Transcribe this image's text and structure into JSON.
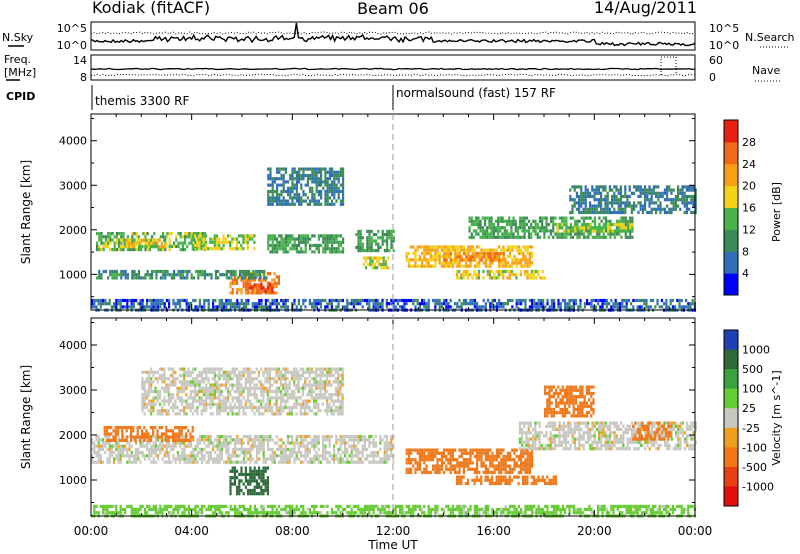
{
  "header": {
    "station": "Kodiak (fitACF)",
    "beam": "Beam 06",
    "date": "14/Aug/2011"
  },
  "noise_panel": {
    "left_label": "N.Sky",
    "right_label": "N.Search",
    "ticks": [
      "10^5",
      "10^0"
    ]
  },
  "freq_panel": {
    "left_label_line1": "Freq.",
    "left_label_line2": "[MHz]",
    "right_label": "Nave",
    "left_ticks": [
      "14",
      "8"
    ],
    "right_ticks": [
      "60",
      "0"
    ]
  },
  "cpid_panel": {
    "label": "CPID",
    "modes": [
      {
        "name": "themis 3300 RF",
        "start_hour": 0
      },
      {
        "name": "normalsound (fast) 157 RF",
        "start_hour": 12
      }
    ]
  },
  "colors": {
    "power_scale": [
      "#0000ff",
      "#2f6fb7",
      "#3c8a57",
      "#47b24a",
      "#f2d21a",
      "#f6a01a",
      "#f06a1a",
      "#e82012"
    ],
    "velocity_scale": [
      "#1f3fb5",
      "#2d6a3a",
      "#3aa240",
      "#66cc33",
      "#c8c8c0",
      "#f0a020",
      "#f07818",
      "#e84010",
      "#e01010"
    ]
  },
  "chart_data": [
    {
      "type": "heatmap",
      "quantity": "Power",
      "title": "",
      "xlabel": "",
      "ylabel": "Slant Range [km]",
      "x_ticks": [
        "00:00",
        "04:00",
        "08:00",
        "12:00",
        "16:00",
        "20:00",
        "00:00"
      ],
      "y_ticks": [
        "1000",
        "2000",
        "3000",
        "4000"
      ],
      "xlim_hours": [
        0,
        24
      ],
      "ylim_km": [
        200,
        4600
      ],
      "colorbar": {
        "label": "Power [dB]",
        "ticks": [
          "4",
          "8",
          "12",
          "16",
          "20",
          "24",
          "28"
        ],
        "range": [
          0,
          32
        ]
      },
      "regions": [
        {
          "t": [
            0.2,
            4.5
          ],
          "r": [
            1550,
            1950
          ],
          "v": 14
        },
        {
          "t": [
            1.2,
            3.0
          ],
          "r": [
            1650,
            1800
          ],
          "v": 18
        },
        {
          "t": [
            4.0,
            6.5
          ],
          "r": [
            1600,
            1900
          ],
          "v": 16
        },
        {
          "t": [
            5.5,
            7.5
          ],
          "r": [
            550,
            1050
          ],
          "v": 24
        },
        {
          "t": [
            6.2,
            7.2
          ],
          "r": [
            600,
            800
          ],
          "v": 28
        },
        {
          "t": [
            7.0,
            10.0
          ],
          "r": [
            1500,
            1900
          ],
          "v": 12
        },
        {
          "t": [
            10.5,
            12.0
          ],
          "r": [
            1550,
            2000
          ],
          "v": 12
        },
        {
          "t": [
            7.0,
            10.0
          ],
          "r": [
            2600,
            3400
          ],
          "v": 8
        },
        {
          "t": [
            0.2,
            7.0
          ],
          "r": [
            900,
            1100
          ],
          "v": 10
        },
        {
          "t": [
            10.8,
            11.8
          ],
          "r": [
            1150,
            1400
          ],
          "v": 18
        },
        {
          "t": [
            12.5,
            17.5
          ],
          "r": [
            1150,
            1650
          ],
          "v": 20
        },
        {
          "t": [
            14.0,
            16.5
          ],
          "r": [
            1300,
            1500
          ],
          "v": 24
        },
        {
          "t": [
            14.5,
            18.0
          ],
          "r": [
            950,
            1100
          ],
          "v": 18
        },
        {
          "t": [
            15.0,
            21.5
          ],
          "r": [
            1800,
            2300
          ],
          "v": 12
        },
        {
          "t": [
            18.5,
            21.5
          ],
          "r": [
            1950,
            2150
          ],
          "v": 16
        },
        {
          "t": [
            19.0,
            24.0
          ],
          "r": [
            2400,
            3000
          ],
          "v": 8
        },
        {
          "t": [
            0.0,
            24.0
          ],
          "r": [
            200,
            450
          ],
          "v": 6
        }
      ]
    },
    {
      "type": "heatmap",
      "quantity": "Velocity",
      "title": "",
      "xlabel": "Time UT",
      "ylabel": "Slant Range [km]",
      "x_ticks": [
        "00:00",
        "04:00",
        "08:00",
        "12:00",
        "16:00",
        "20:00",
        "00:00"
      ],
      "y_ticks": [
        "1000",
        "2000",
        "3000",
        "4000"
      ],
      "xlim_hours": [
        0,
        24
      ],
      "ylim_km": [
        200,
        4600
      ],
      "colorbar": {
        "label": "Velocity [m s^-1]",
        "ticks": [
          "1000",
          "500",
          "100",
          "25",
          "-25",
          "-100",
          "-500",
          "-1000"
        ]
      },
      "regions": [
        {
          "t": [
            0.0,
            12.0
          ],
          "r": [
            1400,
            2000
          ],
          "v": 0
        },
        {
          "t": [
            2.0,
            10.0
          ],
          "r": [
            2500,
            3500
          ],
          "v": 0
        },
        {
          "t": [
            5.5,
            7.0
          ],
          "r": [
            700,
            1300
          ],
          "v": 150
        },
        {
          "t": [
            0.5,
            4.0
          ],
          "r": [
            1900,
            2200
          ],
          "v": -150
        },
        {
          "t": [
            12.5,
            17.5
          ],
          "r": [
            1150,
            1700
          ],
          "v": -300
        },
        {
          "t": [
            14.5,
            18.5
          ],
          "r": [
            900,
            1100
          ],
          "v": -150
        },
        {
          "t": [
            17.0,
            24.0
          ],
          "r": [
            1700,
            2300
          ],
          "v": 0
        },
        {
          "t": [
            18.0,
            20.0
          ],
          "r": [
            2400,
            3100
          ],
          "v": -300
        },
        {
          "t": [
            21.5,
            23.0
          ],
          "r": [
            1900,
            2300
          ],
          "v": -200
        },
        {
          "t": [
            0.0,
            24.0
          ],
          "r": [
            200,
            450
          ],
          "v": 50
        }
      ]
    }
  ]
}
